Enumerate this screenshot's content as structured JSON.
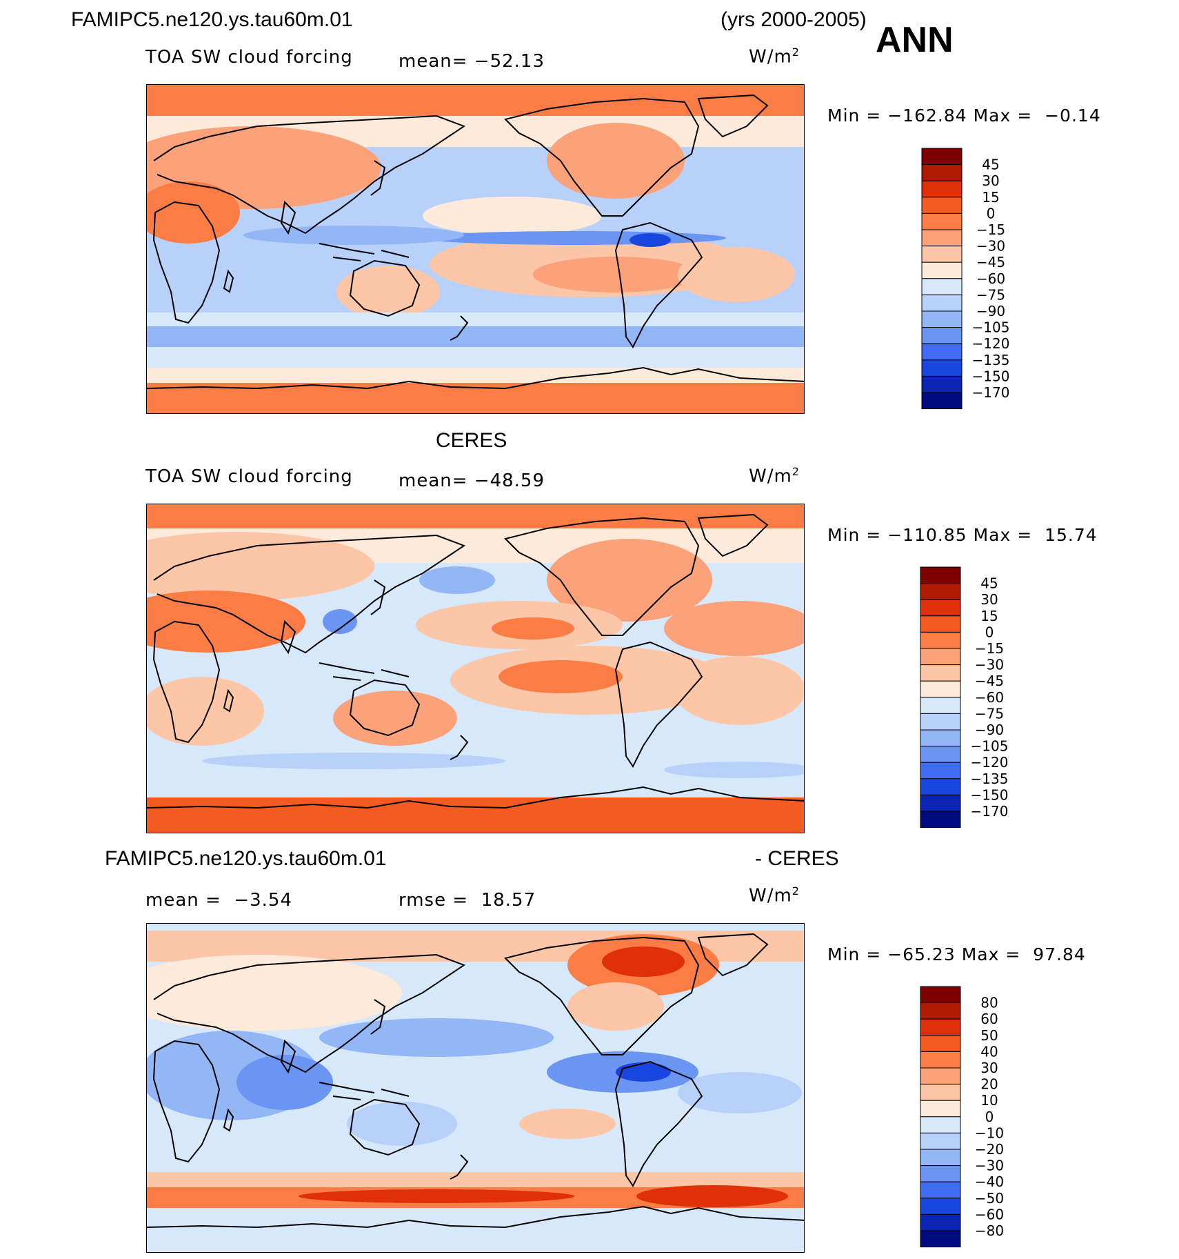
{
  "header": {
    "case_name": "FAMIPC5.ne120.ys.tau60m.01",
    "years": "(yrs 2000-2005)",
    "season": "ANN"
  },
  "units": "W/m",
  "units_exp": "2",
  "panels": [
    {
      "id": "model",
      "section_title": "",
      "variable": "TOA SW cloud forcing",
      "mean_label": "mean=",
      "mean_value": "−52.13",
      "min_label": "Min  =",
      "min_value": "−162.84",
      "max_label": "Max  =",
      "max_value": "−0.14"
    },
    {
      "id": "obs",
      "section_title": "CERES",
      "variable": "TOA SW cloud forcing",
      "mean_label": "mean=",
      "mean_value": "−48.59",
      "min_label": "Min  =",
      "min_value": "−110.85",
      "max_label": "Max  =",
      "max_value": "15.74"
    },
    {
      "id": "diff",
      "section_title": "FAMIPC5.ne120.ys.tau60m.01",
      "section_suffix": "- CERES",
      "mean_label": "mean  =",
      "mean_value": "−3.54",
      "rmse_label": "rmse  =",
      "rmse_value": "18.57",
      "min_label": "Min  =",
      "min_value": "−65.23",
      "max_label": "Max  =",
      "max_value": "97.84"
    }
  ],
  "chart_data": [
    {
      "type": "heatmap",
      "title": "TOA SW cloud forcing",
      "subtitle": "FAMIPC5.ne120.ys.tau60m.01 (yrs 2000-2005) ANN",
      "units": "W/m2",
      "mean": -52.13,
      "min": -162.84,
      "max": -0.14,
      "contour_levels": [
        45,
        30,
        15,
        0,
        -15,
        -30,
        -45,
        -60,
        -75,
        -90,
        -105,
        -120,
        -135,
        -150,
        -170
      ],
      "colorbar_labels": [
        "45",
        "30",
        "15",
        "0",
        "−15",
        "−30",
        "−45",
        "−60",
        "−75",
        "−90",
        "−105",
        "−120",
        "−135",
        "−150",
        "−170"
      ],
      "colors": [
        "#7f0000",
        "#b01a00",
        "#e0300a",
        "#f55a22",
        "#fb7d45",
        "#fca27a",
        "#fdc7a7",
        "#feeadb",
        "#d8e8fb",
        "#b8d1fa",
        "#93b6f7",
        "#6b95f3",
        "#3f6cf0",
        "#1a46e0",
        "#0a25b5",
        "#000c80"
      ]
    },
    {
      "type": "heatmap",
      "title": "TOA SW cloud forcing",
      "subtitle": "CERES",
      "units": "W/m2",
      "mean": -48.59,
      "min": -110.85,
      "max": 15.74,
      "contour_levels": [
        45,
        30,
        15,
        0,
        -15,
        -30,
        -45,
        -60,
        -75,
        -90,
        -105,
        -120,
        -135,
        -150,
        -170
      ],
      "colorbar_labels": [
        "45",
        "30",
        "15",
        "0",
        "−15",
        "−30",
        "−45",
        "−60",
        "−75",
        "−90",
        "−105",
        "−120",
        "−135",
        "−150",
        "−170"
      ],
      "colors": [
        "#7f0000",
        "#b01a00",
        "#e0300a",
        "#f55a22",
        "#fb7d45",
        "#fca27a",
        "#fdc7a7",
        "#feeadb",
        "#d8e8fb",
        "#b8d1fa",
        "#93b6f7",
        "#6b95f3",
        "#3f6cf0",
        "#1a46e0",
        "#0a25b5",
        "#000c80"
      ]
    },
    {
      "type": "heatmap",
      "title": "FAMIPC5.ne120.ys.tau60m.01 - CERES",
      "units": "W/m2",
      "mean": -3.54,
      "rmse": 18.57,
      "min": -65.23,
      "max": 97.84,
      "contour_levels": [
        80,
        60,
        50,
        40,
        30,
        20,
        10,
        0,
        -10,
        -20,
        -30,
        -40,
        -50,
        -60,
        -80
      ],
      "colorbar_labels": [
        "80",
        "60",
        "50",
        "40",
        "30",
        "20",
        "10",
        "0",
        "−10",
        "−20",
        "−30",
        "−40",
        "−50",
        "−60",
        "−80"
      ],
      "colors": [
        "#7f0000",
        "#b01a00",
        "#e0300a",
        "#f55a22",
        "#fb7d45",
        "#fca27a",
        "#fdc7a7",
        "#feeadb",
        "#d8e8fb",
        "#b8d1fa",
        "#93b6f7",
        "#6b95f3",
        "#3f6cf0",
        "#1a46e0",
        "#0a25b5",
        "#000c80"
      ]
    }
  ]
}
